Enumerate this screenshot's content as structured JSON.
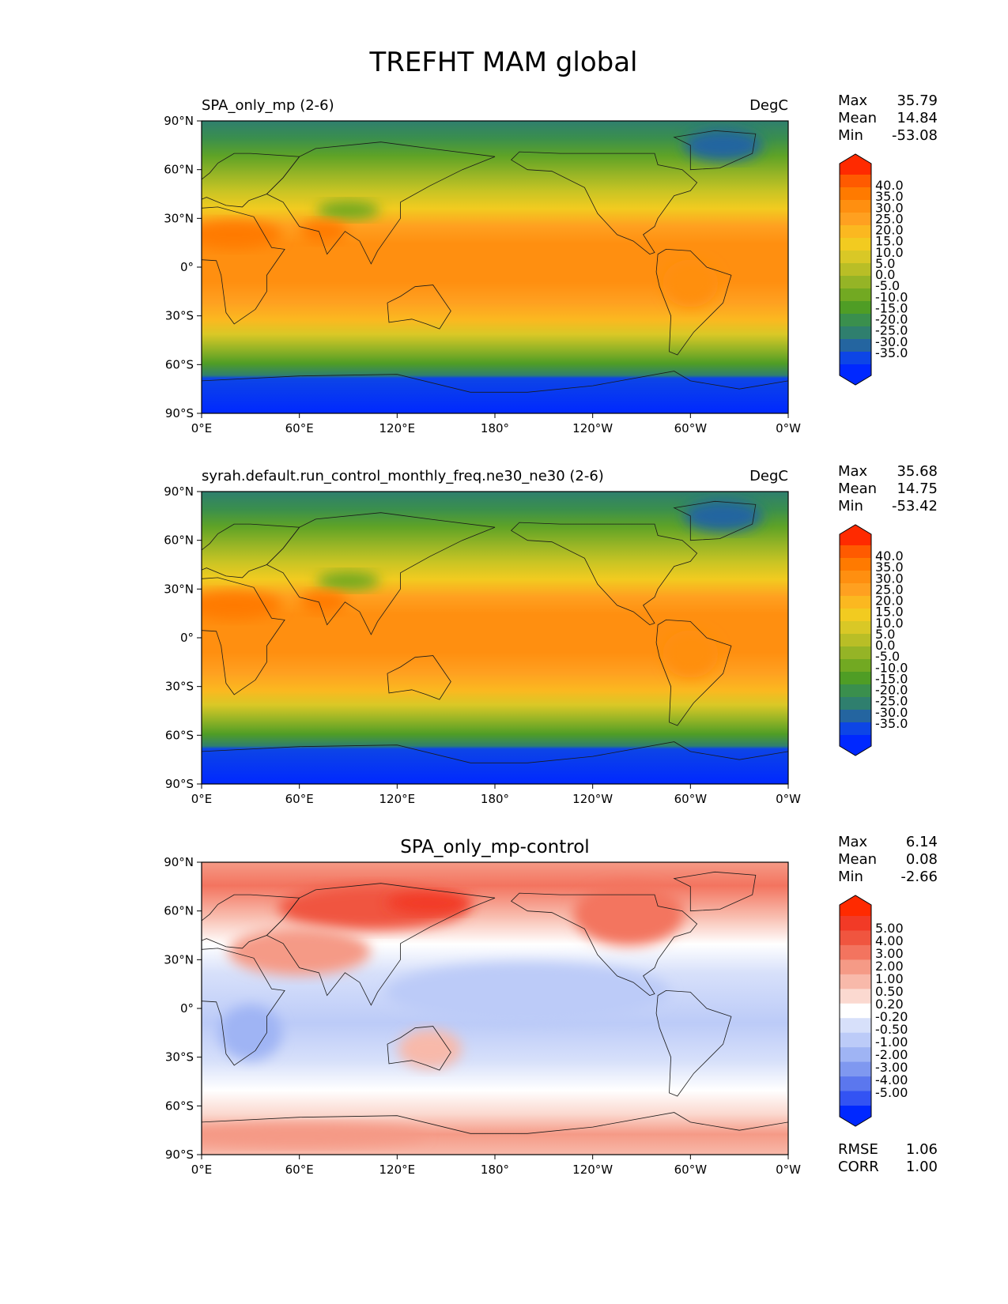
{
  "figure": {
    "title": "TREFHT MAM global"
  },
  "axes": {
    "lat_ticks": [
      "90°N",
      "60°N",
      "30°N",
      "0°",
      "30°S",
      "60°S",
      "90°S"
    ],
    "lon_ticks": [
      "0°E",
      "60°E",
      "120°E",
      "180°",
      "120°W",
      "60°W",
      "0°W"
    ]
  },
  "chart_data": [
    {
      "type": "heatmap",
      "title_left": "SPA_only_mp (2-6)",
      "title_right": "DegC",
      "variable": "TREFHT",
      "stats": {
        "labels": [
          "Max",
          "Mean",
          "Min"
        ],
        "values": [
          "35.79",
          "14.84",
          "-53.08"
        ]
      },
      "colorbar_levels": [
        "40.0",
        "35.0",
        "30.0",
        "25.0",
        "20.0",
        "15.0",
        "10.0",
        "5.0",
        "0.0",
        "-5.0",
        "-10.0",
        "-15.0",
        "-20.0",
        "-25.0",
        "-30.0",
        "-35.0"
      ],
      "colorbar_colors": [
        "#ff2a00",
        "#ff5a00",
        "#ff7a00",
        "#ff8f10",
        "#ffa020",
        "#fbb820",
        "#f2cb20",
        "#d9c826",
        "#b9be26",
        "#95b426",
        "#72a922",
        "#4f9d25",
        "#3a8f4d",
        "#2f7f6e",
        "#2465a0",
        "#0d45e6",
        "#0028ff"
      ],
      "regions": [
        {
          "name": "antarctica",
          "value": -35
        },
        {
          "name": "tropics",
          "value": 25
        },
        {
          "name": "tibet",
          "value": -5
        },
        {
          "name": "greenland",
          "value": -25
        },
        {
          "name": "arctic",
          "value": -20
        }
      ]
    },
    {
      "type": "heatmap",
      "title_left": "syrah.default.run_control_monthly_freq.ne30_ne30 (2-6)",
      "title_right": "DegC",
      "variable": "TREFHT",
      "stats": {
        "labels": [
          "Max",
          "Mean",
          "Min"
        ],
        "values": [
          "35.68",
          "14.75",
          "-53.42"
        ]
      },
      "colorbar_levels": [
        "40.0",
        "35.0",
        "30.0",
        "25.0",
        "20.0",
        "15.0",
        "10.0",
        "5.0",
        "0.0",
        "-5.0",
        "-10.0",
        "-15.0",
        "-20.0",
        "-25.0",
        "-30.0",
        "-35.0"
      ],
      "colorbar_colors": [
        "#ff2a00",
        "#ff5a00",
        "#ff7a00",
        "#ff8f10",
        "#ffa020",
        "#fbb820",
        "#f2cb20",
        "#d9c826",
        "#b9be26",
        "#95b426",
        "#72a922",
        "#4f9d25",
        "#3a8f4d",
        "#2f7f6e",
        "#2465a0",
        "#0d45e6",
        "#0028ff"
      ],
      "regions": [
        {
          "name": "antarctica",
          "value": -35
        },
        {
          "name": "tropics",
          "value": 25
        },
        {
          "name": "tibet",
          "value": -5
        },
        {
          "name": "greenland",
          "value": -25
        },
        {
          "name": "arctic",
          "value": -20
        }
      ]
    },
    {
      "type": "heatmap",
      "title_center": "SPA_only_mp-control",
      "variable": "TREFHT difference",
      "stats": {
        "labels": [
          "Max",
          "Mean",
          "Min"
        ],
        "values": [
          "6.14",
          "0.08",
          "-2.66"
        ]
      },
      "extra_stats": {
        "labels": [
          "RMSE",
          "CORR"
        ],
        "values": [
          "1.06",
          "1.00"
        ]
      },
      "colorbar_levels": [
        "5.00",
        "4.00",
        "3.00",
        "2.00",
        "1.00",
        "0.50",
        "0.20",
        "-0.20",
        "-0.50",
        "-1.00",
        "-2.00",
        "-3.00",
        "-4.00",
        "-5.00"
      ],
      "colorbar_colors": [
        "#ff2a00",
        "#f23a26",
        "#f0553f",
        "#f3745f",
        "#f59a86",
        "#f8b9aa",
        "#fbd9d0",
        "#ffffff",
        "#d7e0fa",
        "#bccbf8",
        "#9fb4f4",
        "#7f98f0",
        "#5b77ee",
        "#3353f3",
        "#0028ff"
      ],
      "regions": [
        {
          "name": "siberia",
          "value": 4.0
        },
        {
          "name": "north_america",
          "value": 3.0
        },
        {
          "name": "tropical_pacific",
          "value": -0.5
        },
        {
          "name": "southern_ocean",
          "value": 1.0
        }
      ]
    }
  ]
}
